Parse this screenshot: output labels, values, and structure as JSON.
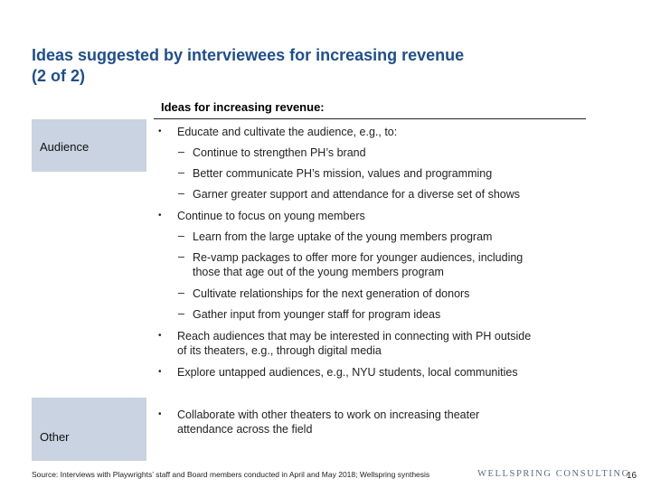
{
  "title_line1": "Ideas suggested by interviewees for increasing revenue",
  "title_line2": "(2 of 2)",
  "section_heading": "Ideas for increasing revenue:",
  "categories": {
    "audience": "Audience",
    "other": "Other"
  },
  "bullet_glyph": "•",
  "dash_glyph": "–",
  "items": {
    "b1": "Educate and cultivate the audience, e.g., to:",
    "b1_s1": "Continue to strengthen PH’s brand",
    "b1_s2": "Better communicate PH’s mission, values and programming",
    "b1_s3": "Garner greater support and attendance for a diverse set of shows",
    "b2": "Continue to focus on young members",
    "b2_s1": "Learn from the large uptake of the young members program",
    "b2_s2_l1": "Re-vamp packages to offer more for younger audiences, including",
    "b2_s2_l2": "those that age out of the young members program",
    "b2_s3": "Cultivate relationships for the next generation of donors",
    "b2_s4": "Gather input from younger staff for program ideas",
    "b3_l1": "Reach audiences that may be interested in connecting with PH outside",
    "b3_l2": "of its theaters, e.g., through digital media",
    "b4": "Explore untapped audiences, e.g., NYU students, local communities",
    "b5_l1": "Collaborate with other theaters to work on increasing theater",
    "b5_l2": "attendance across the field"
  },
  "footer": {
    "source": "Source: Interviews with Playwrights’ staff and Board members conducted in April and May 2018; Wellspring synthesis",
    "logo_text": "WELLSPRING CONSULTING",
    "page_number": "16"
  },
  "colors": {
    "title": "#1f4e8c",
    "category_box": "#c9d3e2"
  }
}
